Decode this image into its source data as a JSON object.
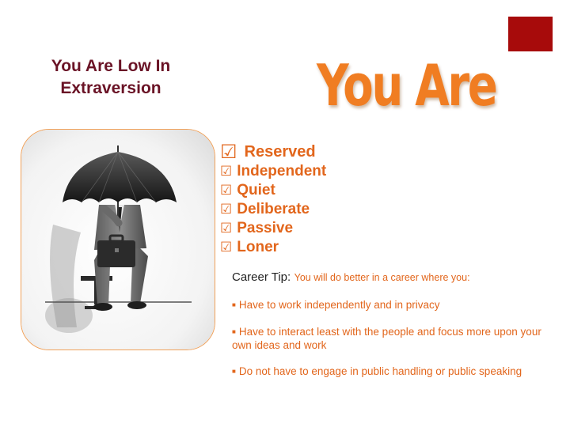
{
  "title_lines": [
    "You Are Low In",
    "Extraversion"
  ],
  "heading": "You Are",
  "traits": [
    "Reserved",
    "Independent",
    "Quiet",
    "Deliberate",
    "Passive",
    "Loner"
  ],
  "check_glyph": "☑",
  "career_tip": {
    "label": "Career Tip:",
    "intro": "You will do better in a career where you:",
    "bullets": [
      "Have to work independently and in privacy",
      "Have to interact least with the people and focus more upon your own ideas and work",
      "Do not have to engage in public handling or public speaking"
    ]
  },
  "colors": {
    "accent_orange": "#f07d22",
    "title_maroon": "#6a1326",
    "corner_red": "#a70b0b",
    "frame_border": "#f0a15a"
  },
  "illustration": "man-with-umbrella-and-briefcase"
}
